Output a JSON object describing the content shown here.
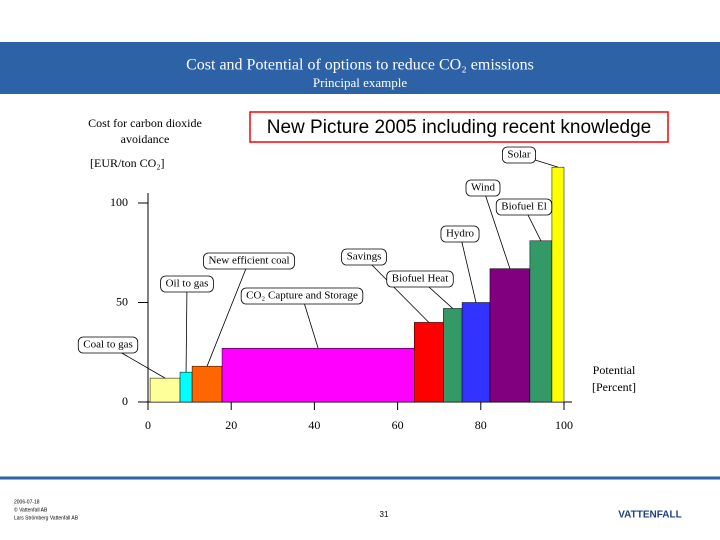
{
  "header": {
    "title": "Cost and Potential of options to reduce CO₂ emissions",
    "subtitle": "Principal example"
  },
  "chart_data": {
    "type": "histogram",
    "title": "New Picture 2005 including recent knowledge",
    "y_label": [
      "Cost for carbon dioxide",
      "avoidance",
      "[EUR/ton CO₂]"
    ],
    "x_label": [
      "Potential",
      "[Percent]"
    ],
    "bins": [
      0.5,
      7.7,
      10.6,
      17.8,
      64,
      71,
      75.5,
      82.2,
      91.8,
      97.1,
      100
    ],
    "values": [
      12,
      15,
      18,
      27,
      40,
      47,
      50,
      67,
      81,
      118
    ],
    "colors": [
      "#ffff99",
      "#00ffff",
      "#ff6600",
      "#ff00ff",
      "#ff0000",
      "#339966",
      "#3333ff",
      "#800080",
      "#339966",
      "#ffff00"
    ],
    "annotations": [
      "Coal to gas",
      "Oil to gas",
      "New efficient coal",
      "CO₂ Capture and Storage",
      "Savings",
      "Biofuel Heat",
      "Hydro",
      "Wind",
      "Biofuel El",
      "Solar"
    ],
    "xlim": [
      0,
      100
    ],
    "ylim": [
      0,
      100
    ],
    "xticks": [
      0,
      20,
      40,
      60,
      80,
      100
    ],
    "yticks": [
      0,
      50,
      100
    ]
  },
  "footer": {
    "date": "2006-07-18",
    "copyright": "© Vattenfall AB",
    "author": "Lars Strömberg Vattenfall AB",
    "page": "31",
    "logo": "VATTENFALL"
  }
}
